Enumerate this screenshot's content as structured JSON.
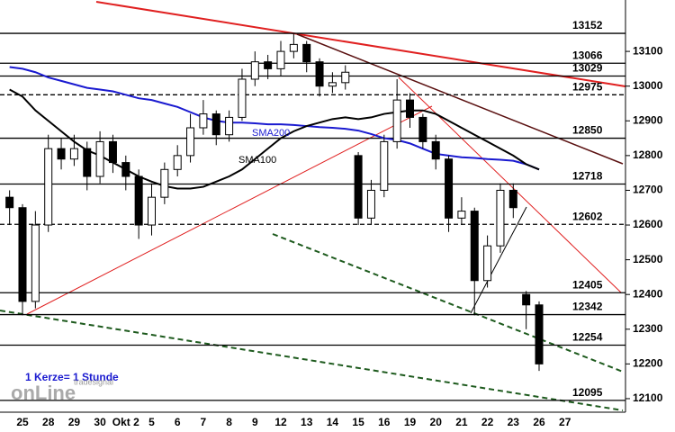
{
  "chart_data": {
    "type": "candlestick",
    "categories": [
      null,
      "25",
      null,
      "28",
      null,
      "29",
      null,
      "30",
      null,
      "Okt 2",
      null,
      "5",
      null,
      "6",
      null,
      "7",
      null,
      "8",
      null,
      "9",
      null,
      "12",
      null,
      "13",
      null,
      "14",
      null,
      "15",
      null,
      "16",
      null,
      "19",
      null,
      "20",
      null,
      "21",
      null,
      "22",
      null,
      "23",
      null,
      "26",
      null,
      "27"
    ],
    "open": [
      12680,
      12650,
      12380,
      12600,
      12820,
      12790,
      12820,
      12740,
      12840,
      12780,
      12740,
      12600,
      12680,
      12760,
      12800,
      12880,
      12920,
      12860,
      12910,
      13020,
      13070,
      13050,
      13100,
      13120,
      13070,
      13000,
      13010,
      12800,
      12620,
      12700,
      12840,
      12960,
      12910,
      12840,
      12790,
      12620,
      12640,
      12440,
      12540,
      12700,
      12400,
      12370,
      null,
      null
    ],
    "high": [
      12700,
      12660,
      12640,
      12860,
      12850,
      12860,
      12840,
      12870,
      12860,
      12800,
      12760,
      12720,
      12780,
      12830,
      12920,
      12960,
      12930,
      12930,
      13050,
      13100,
      13090,
      13130,
      13150,
      13130,
      13080,
      13040,
      13060,
      12810,
      12730,
      12860,
      13020,
      12980,
      12920,
      12860,
      12800,
      12680,
      12650,
      12570,
      12720,
      12720,
      12410,
      12380,
      null,
      null
    ],
    "low": [
      12600,
      12340,
      12360,
      12580,
      12760,
      12770,
      12700,
      12720,
      12750,
      12700,
      12560,
      12570,
      12660,
      12740,
      12780,
      12860,
      12830,
      12840,
      12900,
      13000,
      13020,
      13030,
      13080,
      13040,
      12970,
      12980,
      12990,
      12600,
      12600,
      12680,
      12820,
      12880,
      12820,
      12760,
      12580,
      12600,
      12340,
      12420,
      12520,
      12620,
      12300,
      12180,
      null,
      null
    ],
    "close": [
      12650,
      12380,
      12600,
      12820,
      12790,
      12820,
      12740,
      12840,
      12780,
      12740,
      12600,
      12680,
      12760,
      12800,
      12880,
      12920,
      12860,
      12910,
      13020,
      13070,
      13050,
      13100,
      13120,
      13070,
      13000,
      13010,
      13040,
      12620,
      12700,
      12840,
      12960,
      12910,
      12840,
      12790,
      12620,
      12640,
      12440,
      12540,
      12700,
      12650,
      12370,
      12200,
      null,
      null
    ],
    "series": [
      {
        "name": "SMA200",
        "color": "#1a1ad0",
        "values": [
          13055,
          13050,
          13040,
          13025,
          13015,
          13005,
          12995,
          12990,
          12985,
          12975,
          12965,
          12960,
          12950,
          12940,
          12925,
          12910,
          12900,
          12895,
          12895,
          12893,
          12890,
          12890,
          12888,
          12885,
          12882,
          12880,
          12877,
          12872,
          12862,
          12850,
          12845,
          12835,
          12820,
          12805,
          12800,
          12795,
          12793,
          12790,
          12788,
          12785,
          12775,
          12760,
          null,
          null
        ]
      },
      {
        "name": "SMA100",
        "color": "#000000",
        "values": [
          12990,
          12970,
          12930,
          12900,
          12870,
          12840,
          12815,
          12800,
          12780,
          12760,
          12740,
          12725,
          12712,
          12705,
          12705,
          12710,
          12725,
          12740,
          12760,
          12790,
          12820,
          12850,
          12870,
          12885,
          12895,
          12905,
          12910,
          12905,
          12910,
          12920,
          12925,
          12930,
          12930,
          12920,
          12900,
          12880,
          12860,
          12840,
          12820,
          12800,
          12775,
          12760,
          null,
          null
        ]
      }
    ],
    "levels": [
      {
        "value": 13152,
        "style": "solid"
      },
      {
        "value": 13066,
        "style": "solid"
      },
      {
        "value": 13029,
        "style": "solid"
      },
      {
        "value": 12975,
        "style": "dashed"
      },
      {
        "value": 12850,
        "style": "solid"
      },
      {
        "value": 12718,
        "style": "solid"
      },
      {
        "value": 12602,
        "style": "dashed"
      },
      {
        "value": 12405,
        "style": "solid"
      },
      {
        "value": 12342,
        "style": "solid"
      },
      {
        "value": 12254,
        "style": "solid"
      },
      {
        "value": 12095,
        "style": "solid"
      }
    ],
    "ylim": [
      12061,
      13248
    ],
    "yticks": [
      12100,
      12200,
      12300,
      12400,
      12500,
      12600,
      12700,
      12800,
      12900,
      13000,
      13100
    ],
    "annotation": "1 Kerze= 1 Stunde",
    "logo": "onLine",
    "logo_sub": "tradesignal"
  }
}
